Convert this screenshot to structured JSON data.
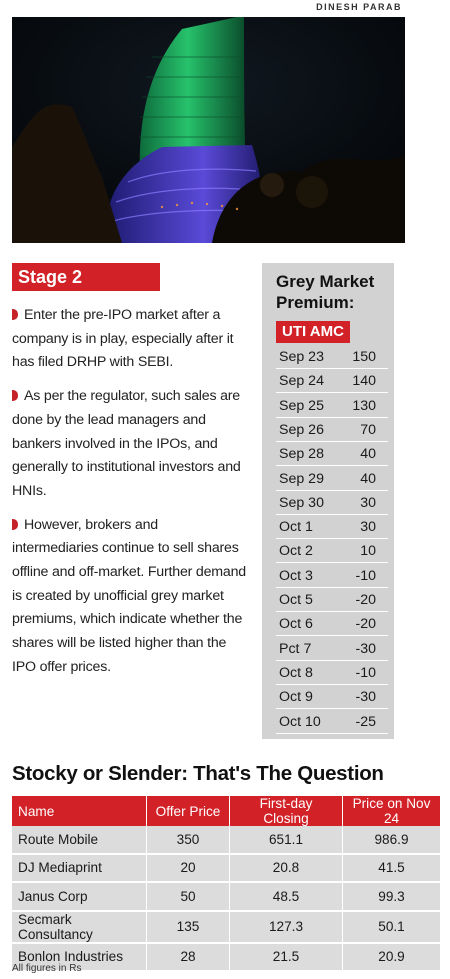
{
  "credit": "DINESH PARAB",
  "stage": {
    "heading": "Stage 2",
    "points": [
      "Enter the pre-IPO market after a company is in play, especially after it has filed DRHP with SEBI.",
      "As per the regulator, such sales are done by the lead managers and bankers involved in the IPOs, and generally to institutional investors and HNIs.",
      "However, brokers and intermediaries continue to sell shares offline and off-market. Further demand is created by unofficial grey market premiums, which indicate whether the shares will be listed higher than the IPO offer prices."
    ]
  },
  "grey_market": {
    "title_line1": "Grey Market",
    "title_line2": "Premium:",
    "company": "UTI AMC",
    "rows": [
      {
        "date": "Sep 23",
        "value": "150"
      },
      {
        "date": "Sep 24",
        "value": "140"
      },
      {
        "date": "Sep 25",
        "value": "130"
      },
      {
        "date": "Sep 26",
        "value": "70"
      },
      {
        "date": "Sep 28",
        "value": "40"
      },
      {
        "date": "Sep 29",
        "value": "40"
      },
      {
        "date": "Sep 30",
        "value": "30"
      },
      {
        "date": "Oct 1",
        "value": "30"
      },
      {
        "date": "Oct 2",
        "value": "10"
      },
      {
        "date": "Oct 3",
        "value": "-10"
      },
      {
        "date": "Oct 5",
        "value": "-20"
      },
      {
        "date": "Oct 6",
        "value": "-20"
      },
      {
        "date": "Pct 7",
        "value": "-30"
      },
      {
        "date": "Oct 8",
        "value": "-10"
      },
      {
        "date": "Oct 9",
        "value": "-30"
      },
      {
        "date": "Oct 10",
        "value": "-25"
      }
    ]
  },
  "ipo_table": {
    "title": "Stocky or Slender: That's The Question",
    "headers": [
      "Name",
      "Offer Price",
      "First-day Closing",
      "Price on Nov 24"
    ],
    "rows": [
      [
        "Route Mobile",
        "350",
        "651.1",
        "986.9"
      ],
      [
        "DJ Mediaprint",
        "20",
        "20.8",
        "41.5"
      ],
      [
        "Janus Corp",
        "50",
        "48.5",
        "99.3"
      ],
      [
        "Secmark Consultancy",
        "135",
        "127.3",
        "50.1"
      ],
      [
        "Bonlon Industries",
        "28",
        "21.5",
        "20.9"
      ]
    ],
    "footnote": "All figures in Rs"
  },
  "photo": {
    "subject": "stock-exchange-building-photo"
  }
}
